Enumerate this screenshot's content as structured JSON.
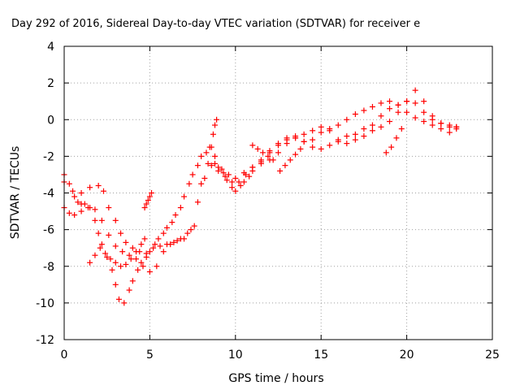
{
  "chart_data": {
    "type": "scatter",
    "title": "Day 292 of 2016, Sidereal Day-to-day VTEC variation (SDTVAR) for receiver e",
    "xlabel": "GPS time / hours",
    "ylabel": "SDTVAR / TECUs",
    "xlim": [
      0,
      25
    ],
    "ylim": [
      -12,
      4
    ],
    "xticks": [
      0,
      5,
      10,
      15,
      20,
      25
    ],
    "yticks": [
      -12,
      -10,
      -8,
      -6,
      -4,
      -2,
      0,
      2,
      4
    ],
    "xtick_labels": [
      "0",
      "5",
      "10",
      "15",
      "20",
      "25"
    ],
    "ytick_labels": [
      "-12",
      "-10",
      "-8",
      "-6",
      "-4",
      "-2",
      "0",
      "2",
      "4"
    ],
    "grid": true,
    "marker": "+",
    "color": "#ff0000",
    "series": [
      {
        "x": [
          0,
          0.3,
          0.6,
          0.8,
          1.0,
          1.2,
          1.5,
          1.8,
          2.0,
          2.2,
          2.5,
          2.8,
          3.0,
          3.2,
          3.5,
          3.8,
          4.0,
          4.3,
          4.5,
          4.8,
          5.0,
          5.3,
          5.5,
          5.8,
          6.0,
          6.3,
          6.5,
          6.8,
          7.0,
          7.3,
          7.5,
          7.8,
          8.0,
          8.3,
          8.5,
          8.8,
          9.0,
          9.3,
          9.5,
          9.8,
          10.0,
          10.3,
          10.5,
          10.8,
          11.0,
          11.5,
          12.0,
          12.5,
          13.0,
          13.5,
          14.0,
          14.5,
          15.0,
          15.5,
          16.0,
          16.5,
          17.0,
          17.5,
          18.0,
          18.5,
          19.0,
          19.5,
          20.0,
          20.5,
          21.0,
          21.5,
          22.0,
          22.5,
          22.9
        ],
        "y": [
          -3.0,
          -3.5,
          -4.2,
          -4.5,
          -4.6,
          -4.6,
          -4.8,
          -5.5,
          -6.2,
          -6.8,
          -7.5,
          -8.2,
          -9.0,
          -9.8,
          -10.0,
          -9.3,
          -8.8,
          -8.2,
          -7.8,
          -7.5,
          -7.2,
          -6.8,
          -6.5,
          -6.2,
          -5.9,
          -5.6,
          -5.2,
          -4.8,
          -4.2,
          -3.5,
          -3.0,
          -2.5,
          -2.0,
          -1.8,
          -1.5,
          -2.0,
          -2.6,
          -2.9,
          -3.3,
          -3.7,
          -3.9,
          -3.6,
          -3.4,
          -3.1,
          -2.8,
          -2.3,
          -1.7,
          -1.3,
          -1.0,
          -0.9,
          -1.2,
          -1.5,
          -1.6,
          -1.4,
          -1.2,
          -0.9,
          -0.8,
          -0.5,
          -0.3,
          0.2,
          0.6,
          0.8,
          1.0,
          0.9,
          0.4,
          0.0,
          -0.2,
          -0.4,
          -0.5
        ]
      },
      {
        "x": [
          0,
          0.3,
          0.6,
          1.0,
          1.4,
          1.8,
          2.2,
          2.6,
          3.0,
          3.4,
          3.8,
          4.2,
          4.6,
          5.0,
          5.4,
          5.8,
          6.2,
          6.6,
          7.0,
          7.4,
          7.8,
          8.2,
          8.6,
          9.0,
          9.4,
          9.8,
          10.2,
          10.6,
          11.0,
          11.5,
          12.0,
          12.5,
          13.0,
          13.5,
          14.0,
          14.5,
          15.0,
          15.5,
          16.0,
          16.5,
          17.0,
          17.5,
          18.0,
          18.5,
          19.0,
          19.5,
          20.0,
          20.5,
          21.0,
          21.5,
          22.0,
          22.5,
          22.9
        ],
        "y": [
          -4.8,
          -5.1,
          -5.2,
          -5.0,
          -4.8,
          -4.9,
          -5.5,
          -6.3,
          -6.9,
          -7.2,
          -7.4,
          -7.6,
          -8.0,
          -8.3,
          -8.0,
          -7.2,
          -6.8,
          -6.6,
          -6.5,
          -6.0,
          -4.5,
          -3.2,
          -2.5,
          -2.8,
          -3.1,
          -3.4,
          -3.4,
          -3.0,
          -2.6,
          -2.4,
          -2.2,
          -1.8,
          -1.3,
          -1.0,
          -0.8,
          -0.6,
          -0.4,
          -0.6,
          -1.1,
          -1.3,
          -1.1,
          -0.9,
          -0.6,
          -0.4,
          -0.1,
          0.4,
          1.0,
          1.6,
          1.0,
          0.2,
          -0.2,
          -0.3,
          -0.4
        ]
      },
      {
        "x": [
          0,
          0.5,
          1.0,
          1.5,
          2.0,
          2.3,
          2.6,
          3.0,
          3.3,
          3.6,
          4.0,
          4.4,
          4.8,
          5.2,
          5.6,
          6.0,
          6.4,
          6.8,
          7.2,
          7.6,
          8.0,
          8.4,
          8.8,
          9.2,
          9.6,
          10.0,
          10.5,
          11.0,
          11.5,
          12.0,
          12.5,
          13.0,
          13.5,
          14.0,
          14.5,
          15.0,
          15.5,
          16.0,
          16.5,
          17.0,
          17.5,
          18.0,
          18.5,
          19.0,
          19.5,
          20.0,
          20.5,
          21.0,
          21.5,
          22.0,
          22.5,
          22.9
        ],
        "y": [
          -3.4,
          -3.9,
          -4.0,
          -3.7,
          -3.6,
          -3.9,
          -4.8,
          -5.5,
          -6.2,
          -6.7,
          -7.0,
          -7.2,
          -7.3,
          -7.0,
          -6.9,
          -6.8,
          -6.7,
          -6.5,
          -6.2,
          -5.8,
          -3.5,
          -2.4,
          -2.4,
          -2.7,
          -3.0,
          -3.2,
          -2.9,
          -2.6,
          -2.2,
          -1.8,
          -1.4,
          -1.1,
          -1.0,
          -1.2,
          -1.1,
          -0.7,
          -0.5,
          -0.3,
          0.0,
          0.3,
          0.5,
          0.7,
          0.9,
          1.0,
          0.8,
          0.4,
          0.1,
          -0.1,
          -0.3,
          -0.5,
          -0.7,
          -0.4
        ]
      },
      {
        "x": [
          1.5,
          1.8,
          2.1,
          2.4,
          2.7,
          3.0,
          3.3,
          3.6,
          3.9,
          4.2,
          4.5,
          4.7
        ],
        "y": [
          -7.8,
          -7.4,
          -7.0,
          -7.3,
          -7.6,
          -7.8,
          -8.0,
          -7.9,
          -7.6,
          -7.2,
          -6.8,
          -6.5
        ]
      },
      {
        "x": [
          4.7,
          4.8,
          4.9,
          5.0,
          5.1
        ],
        "y": [
          -4.8,
          -4.6,
          -4.4,
          -4.2,
          -4.0
        ]
      },
      {
        "x": [
          8.6,
          8.7,
          8.8,
          8.9
        ],
        "y": [
          -1.5,
          -0.8,
          -0.3,
          0.0
        ]
      },
      {
        "x": [
          11.0,
          11.3,
          11.6,
          11.9,
          12.2
        ],
        "y": [
          -1.4,
          -1.6,
          -1.8,
          -2.0,
          -2.2
        ]
      },
      {
        "x": [
          18.8,
          19.1,
          19.4,
          19.7
        ],
        "y": [
          -1.8,
          -1.5,
          -1.0,
          -0.5
        ]
      },
      {
        "x": [
          12.6,
          12.9,
          13.2,
          13.5,
          13.8
        ],
        "y": [
          -2.8,
          -2.5,
          -2.2,
          -1.9,
          -1.6
        ]
      }
    ]
  }
}
